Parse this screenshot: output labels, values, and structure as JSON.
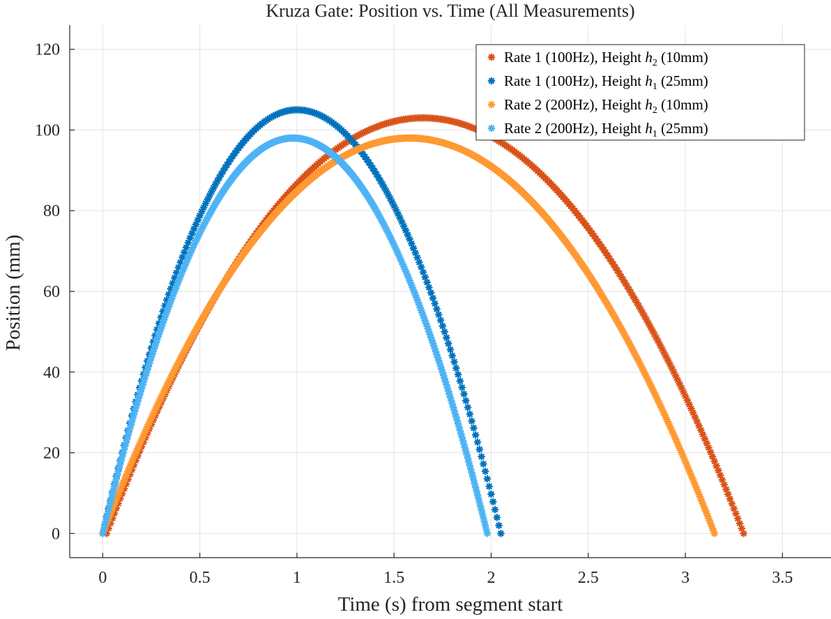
{
  "chart_data": {
    "type": "scatter",
    "title": "Kruza Gate: Position vs. Time (All Measurements)",
    "xlabel": "Time (s) from segment start",
    "ylabel": "Position (mm)",
    "xlim": [
      -0.17,
      3.75
    ],
    "ylim": [
      -6,
      126
    ],
    "xticks": [
      0,
      0.5,
      1,
      1.5,
      2,
      2.5,
      3,
      3.5
    ],
    "xtick_labels": [
      "0",
      "0.5",
      "1",
      "1.5",
      "2",
      "2.5",
      "3",
      "3.5"
    ],
    "yticks": [
      0,
      20,
      40,
      60,
      80,
      100,
      120
    ],
    "ytick_labels": [
      "0",
      "20",
      "40",
      "60",
      "80",
      "100",
      "120"
    ],
    "grid": true,
    "legend_position": "top-right",
    "series": [
      {
        "legend_prefix": "Rate 1 (100Hz), Height ",
        "legend_var": "h",
        "legend_sub": "2",
        "legend_suffix": " (10mm)",
        "color": "#D95319",
        "marker": "asterisk",
        "t_start": 0.02,
        "t_peak": 1.65,
        "t_end": 3.3,
        "peak_position": 103,
        "samples_per_second": 100
      },
      {
        "legend_prefix": "Rate 1 (100Hz), Height ",
        "legend_var": "h",
        "legend_sub": "1",
        "legend_suffix": " (25mm)",
        "color": "#0072BD",
        "marker": "asterisk",
        "t_start": 0.0,
        "t_peak": 1.0,
        "t_end": 2.05,
        "peak_position": 105,
        "samples_per_second": 100
      },
      {
        "legend_prefix": "Rate 2 (200Hz), Height ",
        "legend_var": "h",
        "legend_sub": "2",
        "legend_suffix": " (10mm)",
        "color": "#FF9933",
        "marker": "asterisk",
        "t_start": 0.0,
        "t_peak": 1.58,
        "t_end": 3.15,
        "peak_position": 98,
        "samples_per_second": 200
      },
      {
        "legend_prefix": "Rate 2 (200Hz), Height ",
        "legend_var": "h",
        "legend_sub": "1",
        "legend_suffix": " (25mm)",
        "color": "#4DB3F5",
        "marker": "asterisk",
        "t_start": 0.0,
        "t_peak": 0.98,
        "t_end": 1.98,
        "peak_position": 98,
        "samples_per_second": 200
      }
    ]
  }
}
